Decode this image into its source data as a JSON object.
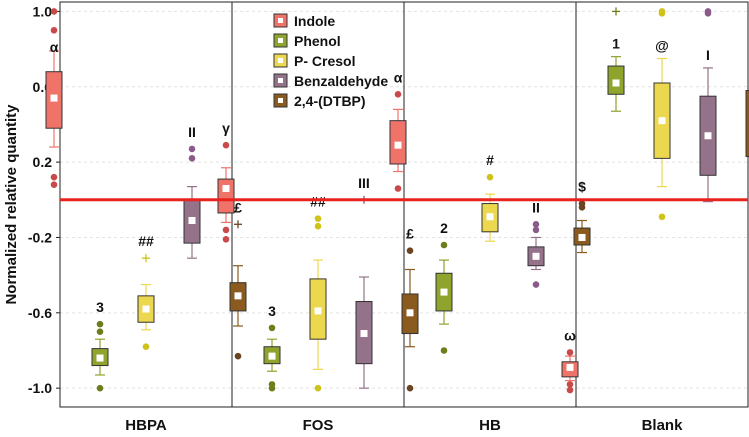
{
  "chart_data": {
    "type": "box",
    "ylabel": "Normalized relative quantity",
    "ylim": [
      -1.1,
      1.05
    ],
    "yticks": [
      {
        "value": 1.0,
        "label": "1.0"
      },
      {
        "value": 0.6,
        "label": "0.6"
      },
      {
        "value": 0.2,
        "label": "0.2"
      },
      {
        "value": -0.2,
        "label": "-0.2"
      },
      {
        "value": -0.6,
        "label": "-0.6"
      },
      {
        "value": -1.0,
        "label": "-1.0"
      }
    ],
    "grid": true,
    "reference_line": {
      "value": 0,
      "color": "#e8231e"
    },
    "legend_position": "top-center",
    "categories": [
      "HBPA",
      "FOS",
      "HB",
      "Blank"
    ],
    "series": [
      {
        "name": "Indole",
        "color": "#f0736a",
        "point_color": "#c84a4a",
        "groups": [
          {
            "q1": 0.38,
            "median": 0.54,
            "q3": 0.68,
            "whisker_low": 0.28,
            "whisker_high": 0.79,
            "outliers": [
              1.0,
              0.9,
              0.12,
              0.08
            ],
            "plus": [],
            "label": "α"
          },
          {
            "q1": -0.07,
            "median": 0.06,
            "q3": 0.11,
            "whisker_low": -0.12,
            "whisker_high": 0.17,
            "outliers": [
              0.29,
              -0.16,
              -0.21
            ],
            "plus": [],
            "label": "γ"
          },
          {
            "q1": 0.19,
            "median": 0.29,
            "q3": 0.42,
            "whisker_low": 0.15,
            "whisker_high": 0.48,
            "outliers": [
              0.56,
              0.06
            ],
            "plus": [],
            "label": "α"
          },
          {
            "q1": -0.94,
            "median": -0.89,
            "q3": -0.86,
            "whisker_low": -0.96,
            "whisker_high": -0.83,
            "outliers": [
              -0.81,
              -0.98,
              -1.01
            ],
            "plus": [],
            "label": "ω"
          }
        ]
      },
      {
        "name": "Phenol",
        "color": "#8ea42c",
        "point_color": "#6e7d1c",
        "groups": [
          {
            "q1": -0.88,
            "median": -0.84,
            "q3": -0.79,
            "whisker_low": -0.93,
            "whisker_high": -0.74,
            "outliers": [
              -0.66,
              -0.7,
              -1.0
            ],
            "plus": [],
            "label": "3"
          },
          {
            "q1": -0.87,
            "median": -0.83,
            "q3": -0.78,
            "whisker_low": -0.91,
            "whisker_high": -0.74,
            "outliers": [
              -0.68,
              -0.98,
              -1.0
            ],
            "plus": [],
            "label": "3"
          },
          {
            "q1": -0.59,
            "median": -0.49,
            "q3": -0.39,
            "whisker_low": -0.66,
            "whisker_high": -0.32,
            "outliers": [
              -0.24,
              -0.8
            ],
            "plus": [],
            "label": "2"
          },
          {
            "q1": 0.56,
            "median": 0.62,
            "q3": 0.71,
            "whisker_low": 0.47,
            "whisker_high": 0.76,
            "outliers": [],
            "plus": [
              1.0
            ],
            "label": "1"
          }
        ]
      },
      {
        "name": "P- Cresol",
        "color": "#ecd84e",
        "point_color": "#cfc21a",
        "groups": [
          {
            "q1": -0.65,
            "median": -0.58,
            "q3": -0.51,
            "whisker_low": -0.69,
            "whisker_high": -0.45,
            "outliers": [
              -0.78
            ],
            "plus": [
              -0.31
            ],
            "label": "##"
          },
          {
            "q1": -0.74,
            "median": -0.59,
            "q3": -0.42,
            "whisker_low": -0.9,
            "whisker_high": -0.32,
            "outliers": [
              -0.1,
              -0.14,
              -1.0
            ],
            "plus": [],
            "label": "##"
          },
          {
            "q1": -0.17,
            "median": -0.09,
            "q3": -0.02,
            "whisker_low": -0.22,
            "whisker_high": 0.03,
            "outliers": [
              0.12
            ],
            "plus": [],
            "label": "#"
          },
          {
            "q1": 0.22,
            "median": 0.42,
            "q3": 0.62,
            "whisker_low": 0.07,
            "whisker_high": 0.75,
            "outliers": [
              1.0,
              0.99,
              -0.09
            ],
            "plus": [],
            "label": "@"
          }
        ]
      },
      {
        "name": "Benzaldehyde",
        "color": "#947289",
        "point_color": "#8a5a8a",
        "groups": [
          {
            "q1": -0.23,
            "median": -0.11,
            "q3": 0.0,
            "whisker_low": -0.31,
            "whisker_high": 0.07,
            "outliers": [
              0.27,
              0.22
            ],
            "plus": [],
            "label": "II"
          },
          {
            "q1": -0.87,
            "median": -0.71,
            "q3": -0.54,
            "whisker_low": -1.0,
            "whisker_high": -0.41,
            "outliers": [],
            "plus": [
              0.0
            ],
            "label": "III"
          },
          {
            "q1": -0.35,
            "median": -0.3,
            "q3": -0.25,
            "whisker_low": -0.37,
            "whisker_high": -0.2,
            "outliers": [
              -0.13,
              -0.16,
              -0.45
            ],
            "plus": [],
            "label": "II"
          },
          {
            "q1": 0.13,
            "median": 0.34,
            "q3": 0.55,
            "whisker_low": -0.01,
            "whisker_high": 0.7,
            "outliers": [
              1.0,
              0.99
            ],
            "plus": [],
            "label": "I"
          }
        ]
      },
      {
        "name": "2,4-(DTBP)",
        "color": "#8a5a1e",
        "point_color": "#6b4422",
        "groups": [
          {
            "q1": -0.59,
            "median": -0.51,
            "q3": -0.44,
            "whisker_low": -0.67,
            "whisker_high": -0.35,
            "outliers": [
              -0.83
            ],
            "plus": [
              -0.13
            ],
            "label": "£"
          },
          {
            "q1": -0.71,
            "median": -0.6,
            "q3": -0.5,
            "whisker_low": -0.78,
            "whisker_high": -0.37,
            "outliers": [
              -0.27,
              -1.0
            ],
            "plus": [],
            "label": "£"
          },
          {
            "q1": -0.24,
            "median": -0.2,
            "q3": -0.15,
            "whisker_low": -0.28,
            "whisker_high": -0.11,
            "outliers": [
              -0.02,
              -0.04
            ],
            "plus": [],
            "label": "$"
          },
          {
            "q1": 0.23,
            "median": 0.4,
            "q3": 0.58,
            "whisker_low": 0.11,
            "whisker_high": 0.7,
            "outliers": [],
            "plus": [],
            "label": "€"
          }
        ]
      }
    ]
  }
}
